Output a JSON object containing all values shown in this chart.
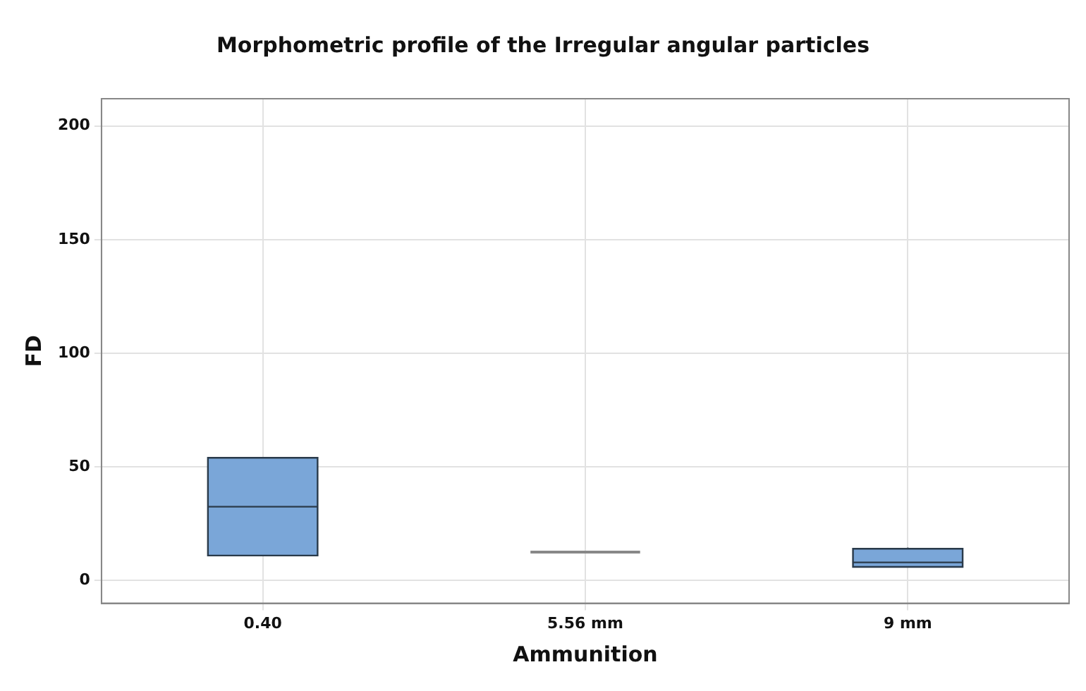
{
  "chart_data": {
    "type": "box",
    "title": "Morphometric profile of the Irregular angular particles",
    "xlabel": "Ammunition",
    "ylabel": "FD",
    "categories": [
      "0.40",
      "5.56 mm",
      "9 mm"
    ],
    "boxes": [
      {
        "low": 11,
        "q1": 11,
        "median": 32.5,
        "q3": 54,
        "high": 54
      },
      {
        "low": 12.5,
        "q1": 12.5,
        "median": 12.5,
        "q3": 12.5,
        "high": 12.5
      },
      {
        "low": 6,
        "q1": 6,
        "median": 8,
        "q3": 14,
        "high": 14.5
      }
    ],
    "colors": [
      "#7aa6d8",
      "#888888",
      "#7aa6d8"
    ],
    "ylim": [
      -10,
      212
    ],
    "yticks": [
      0,
      50,
      100,
      150,
      200
    ],
    "grid": true,
    "legend": false
  }
}
